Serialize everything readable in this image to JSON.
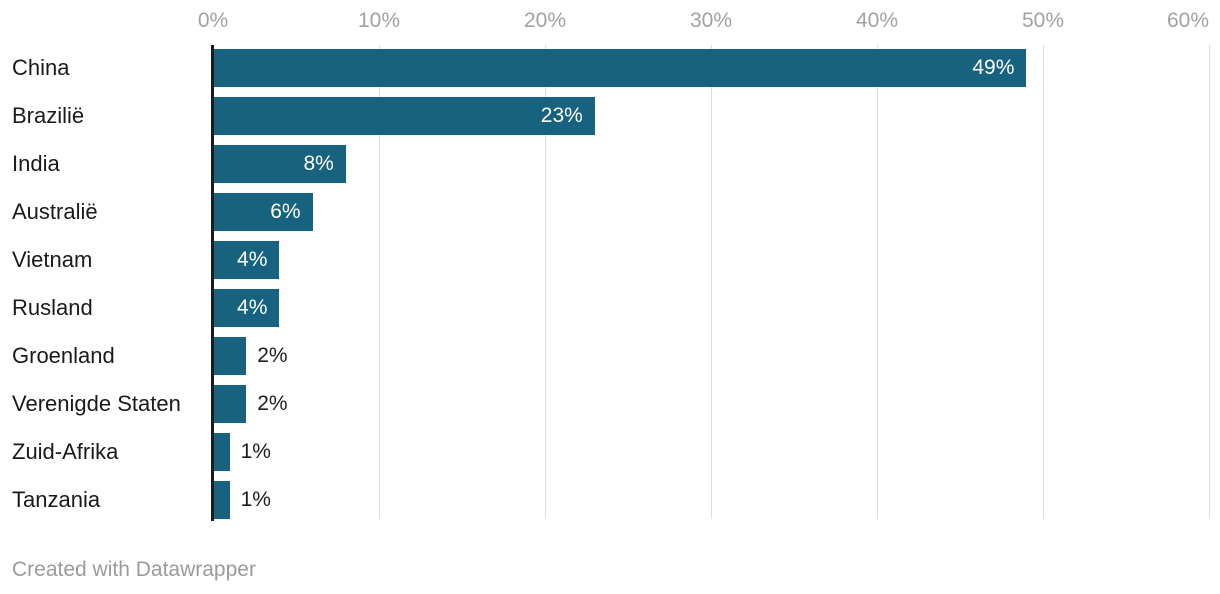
{
  "chart_data": {
    "type": "bar",
    "orientation": "horizontal",
    "categories": [
      "China",
      "Brazilië",
      "India",
      "Australië",
      "Vietnam",
      "Rusland",
      "Groenland",
      "Verenigde Staten",
      "Zuid-Afrika",
      "Tanzania"
    ],
    "values": [
      49,
      23,
      8,
      6,
      4,
      4,
      2,
      2,
      1,
      1
    ],
    "value_labels": [
      "49%",
      "23%",
      "8%",
      "6%",
      "4%",
      "4%",
      "2%",
      "2%",
      "1%",
      "1%"
    ],
    "title": "",
    "xlabel": "",
    "ylabel": "",
    "x_axis": {
      "ticks": [
        0,
        10,
        20,
        30,
        40,
        50,
        60
      ],
      "tick_labels": [
        "0%",
        "10%",
        "20%",
        "30%",
        "40%",
        "50%",
        "60%"
      ],
      "min": 0,
      "max": 60
    },
    "grid": true,
    "legend": "none",
    "colors": {
      "bar": "#17627e",
      "inside_value_label": "#ffffff",
      "outside_value_label": "#1d1d1d",
      "category_label": "#1a1a1a",
      "tick_label": "#a1a1a1",
      "gridline": "#dddddd",
      "axis_line": "#1a1a1a"
    }
  },
  "footer": {
    "attribution": "Created with Datawrapper"
  }
}
